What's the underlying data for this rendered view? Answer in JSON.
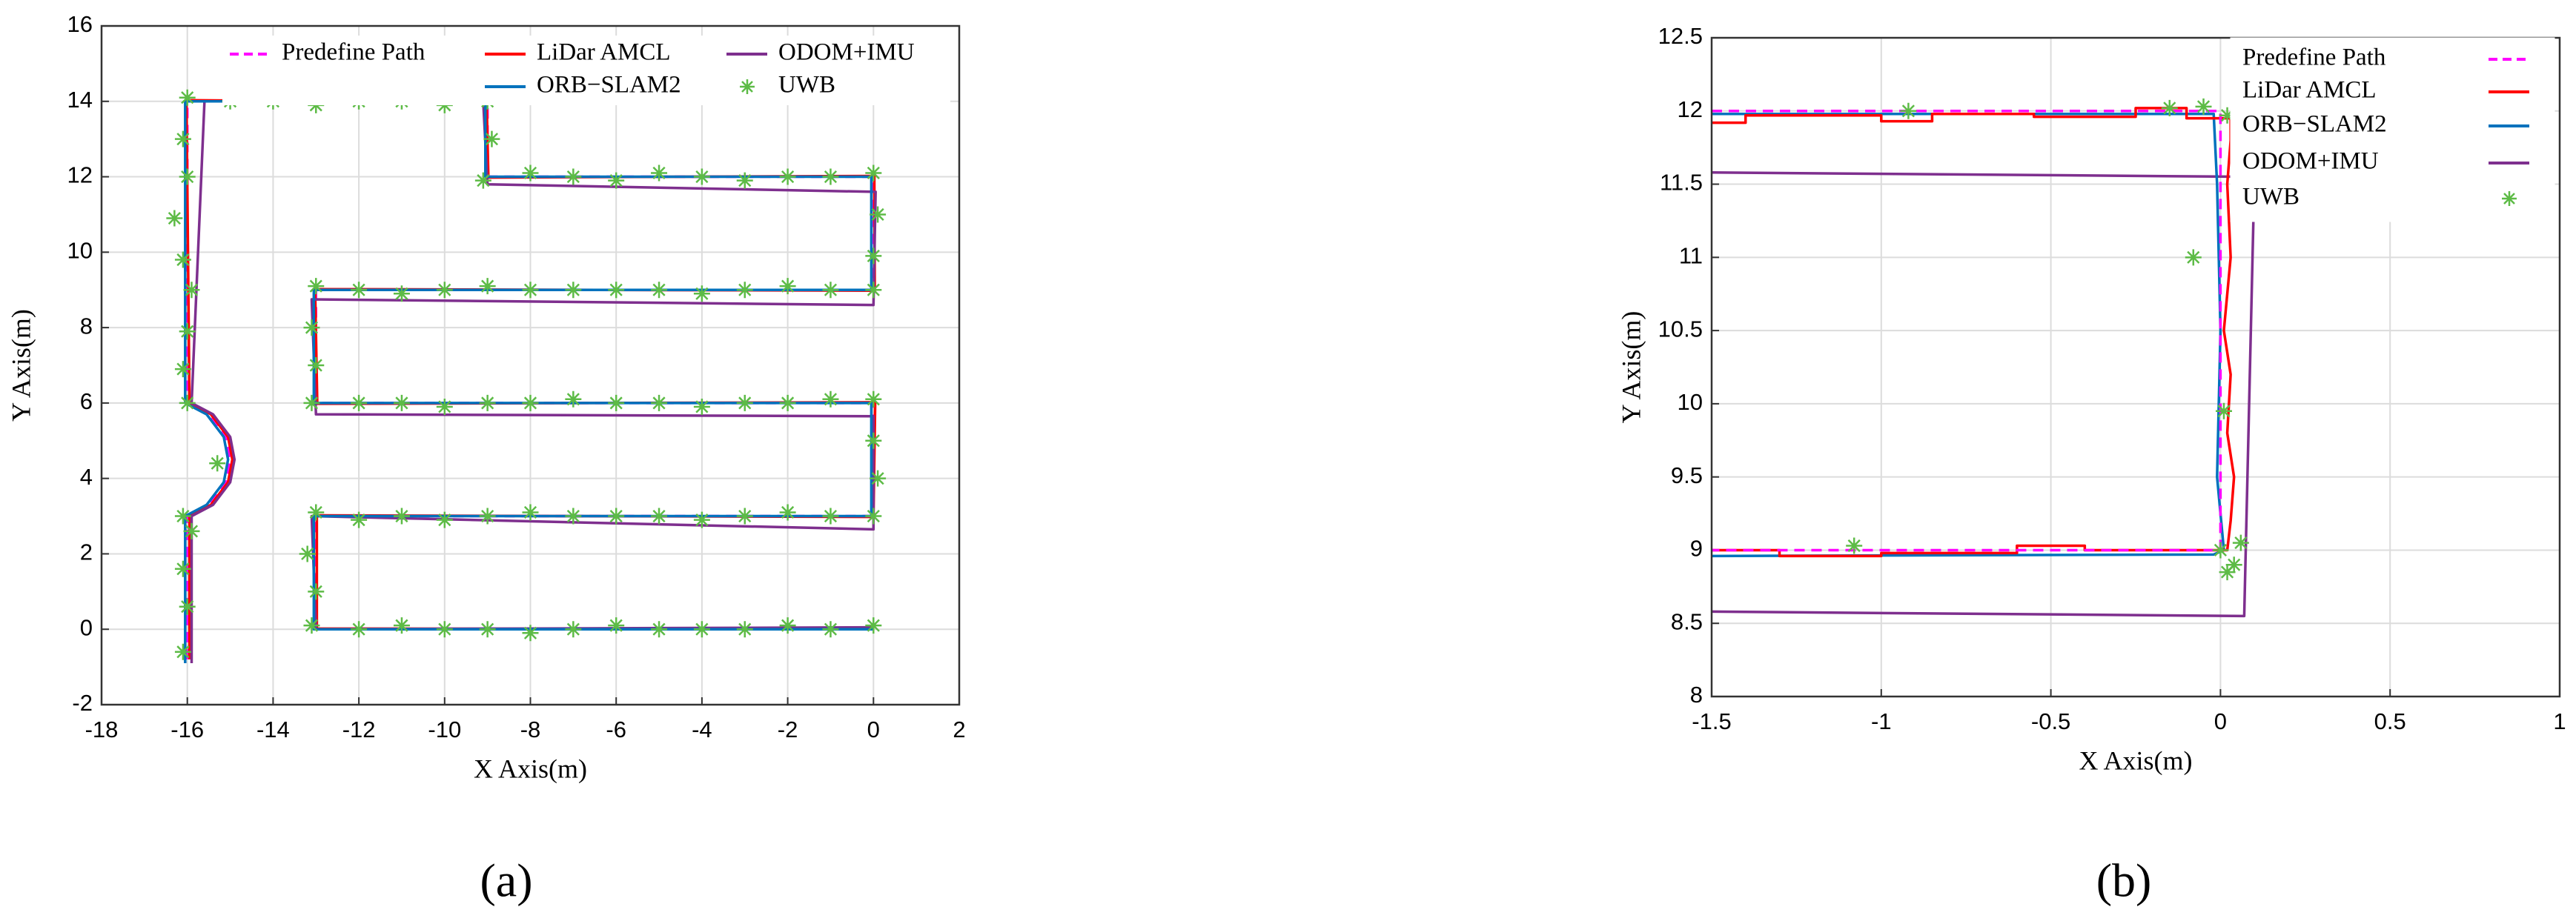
{
  "chart_data": [
    {
      "type": "line",
      "panel_label": "(a)",
      "x_label": "X Axis(m)",
      "y_label": "Y Axis(m)",
      "xlim": [
        -18,
        2
      ],
      "ylim": [
        -2,
        16
      ],
      "xticks": [
        -18,
        -16,
        -14,
        -12,
        -10,
        -8,
        -6,
        -4,
        -2,
        0,
        2
      ],
      "yticks": [
        -2,
        0,
        2,
        4,
        6,
        8,
        10,
        12,
        14,
        16
      ],
      "grid": true,
      "legend": "top-center",
      "series": [
        {
          "name": "Predefine Path",
          "color": "#ff00ff",
          "style": "dashed",
          "x": [
            -16,
            -16,
            -15.5,
            -15.1,
            -15,
            -15.1,
            -15.5,
            -16,
            -16,
            -9,
            -9,
            0,
            0,
            -13,
            -13,
            0,
            0,
            -13,
            -13,
            0
          ],
          "values": [
            -0.8,
            3,
            3.3,
            3.9,
            4.5,
            5.1,
            5.7,
            6,
            14,
            14,
            12,
            12,
            9,
            9,
            6,
            6,
            3,
            3,
            0,
            0
          ]
        },
        {
          "name": "LiDar AMCL",
          "color": "#ff0000",
          "style": "solid",
          "x": [
            -15.95,
            -15.95,
            -15.45,
            -15.05,
            -14.95,
            -15.05,
            -15.45,
            -15.95,
            -16.02,
            -9.02,
            -8.98,
            0.02,
            0.03,
            -13.02,
            -12.97,
            0.04,
            0,
            -12.98,
            -12.98,
            0.02
          ],
          "values": [
            -0.8,
            3,
            3.3,
            3.9,
            4.5,
            5.1,
            5.7,
            6.02,
            14.03,
            13.97,
            11.98,
            12.02,
            8.98,
            9.02,
            5.98,
            6.02,
            2.98,
            3.02,
            0.02,
            0
          ]
        },
        {
          "name": "ODOM+IMU",
          "color": "#7e2f8e",
          "style": "solid",
          "x": [
            -15.9,
            -15.9,
            -15.4,
            -15,
            -14.9,
            -15,
            -15.4,
            -15.9,
            -15.6,
            -9.1,
            -9,
            0.05,
            0,
            -13.1,
            -13,
            0,
            0,
            -13.1,
            -13,
            0
          ],
          "values": [
            -0.9,
            3,
            3.3,
            3.9,
            4.5,
            5.1,
            5.7,
            6,
            14,
            14,
            11.8,
            11.6,
            8.6,
            8.75,
            5.7,
            5.65,
            2.65,
            3,
            0,
            0.05
          ]
        },
        {
          "name": "ORB−SLAM2",
          "color": "#0072bd",
          "style": "solid",
          "x": [
            -16.05,
            -16.05,
            -15.55,
            -15.15,
            -15.05,
            -15.15,
            -15.55,
            -16.05,
            -16.05,
            -9.05,
            -9.05,
            -0.05,
            -0.05,
            -13.05,
            -13.05,
            -0.05,
            -0.05,
            -13.05,
            -13.05,
            0
          ],
          "values": [
            -0.9,
            3,
            3.3,
            3.9,
            4.5,
            5.1,
            5.7,
            6,
            14,
            14,
            12,
            12,
            9,
            9,
            6,
            6,
            3,
            3,
            0,
            0
          ]
        },
        {
          "name": "UWB",
          "color": "#5dbb46",
          "style": "none",
          "marker": "asterisk",
          "x": [
            -16.1,
            -16,
            -16.1,
            -15.9,
            -16.1,
            -16,
            -16.1,
            -16,
            -15.9,
            -16.1,
            -16.3,
            -16,
            -16.1,
            -16,
            -15,
            -14,
            -13,
            -12,
            -11,
            -10,
            -9,
            -8.9,
            -9.1,
            -8,
            -7,
            -6,
            -5,
            -4,
            -3,
            -2,
            -1,
            0,
            0.1,
            0,
            0,
            -1,
            -2,
            -3,
            -4,
            -5,
            -6,
            -7,
            -8,
            -9,
            -10,
            -11,
            -12,
            -13,
            -13.1,
            -13,
            -13.1,
            -12,
            -11,
            -10,
            -9,
            -8,
            -7,
            -6,
            -5,
            -4,
            -3,
            -2,
            -1,
            0,
            0,
            0.1,
            0,
            -1,
            -2,
            -3,
            -4,
            -5,
            -6,
            -7,
            -8,
            -9,
            -10,
            -11,
            -12,
            -13,
            -13.2,
            -13,
            -13.1,
            -12,
            -11,
            -10,
            -9,
            -8,
            -7,
            -6,
            -5,
            -4,
            -3,
            -2,
            -1,
            0,
            -15.3
          ],
          "values": [
            -0.6,
            0.6,
            1.6,
            2.6,
            3,
            6,
            6.9,
            7.9,
            9,
            9.8,
            10.9,
            12,
            13,
            14.1,
            14,
            14,
            13.9,
            14,
            14,
            13.9,
            14,
            13,
            11.9,
            12.1,
            12,
            11.9,
            12.1,
            12,
            11.9,
            12,
            12,
            12.1,
            11,
            9.9,
            9,
            9,
            9.1,
            9,
            8.9,
            9,
            9,
            9,
            9,
            9.1,
            9,
            8.9,
            9,
            9.1,
            8,
            7,
            6,
            6,
            6,
            5.9,
            6,
            6,
            6.1,
            6,
            6,
            5.9,
            6,
            6,
            6.1,
            6.1,
            5,
            4,
            3,
            3,
            3.1,
            3,
            2.9,
            3,
            3,
            3,
            3.1,
            3,
            2.9,
            3,
            2.9,
            3.1,
            2,
            1,
            0.1,
            0,
            0.1,
            0,
            0,
            -0.1,
            0,
            0.1,
            0,
            0,
            0,
            0.1,
            0,
            0.1,
            4.4
          ]
        }
      ]
    },
    {
      "type": "line",
      "panel_label": "(b)",
      "x_label": "X Axis(m)",
      "y_label": "Y Axis(m)",
      "xlim": [
        -1.5,
        1
      ],
      "ylim": [
        8,
        12.5
      ],
      "xticks": [
        -1.5,
        -1,
        -0.5,
        0,
        0.5,
        1
      ],
      "yticks": [
        8,
        8.5,
        9,
        9.5,
        10,
        10.5,
        11,
        11.5,
        12,
        12.5
      ],
      "grid": true,
      "legend": "top-right",
      "series": [
        {
          "name": "ODOM+IMU",
          "color": "#7e2f8e",
          "style": "solid",
          "x": [
            -1.5,
            0.1,
            0.07,
            -1.5
          ],
          "values": [
            11.58,
            11.55,
            8.55,
            8.58
          ]
        },
        {
          "name": "ORB−SLAM2",
          "color": "#0072bd",
          "style": "solid",
          "x": [
            -1.5,
            -0.02,
            -0.01,
            0,
            -0.01,
            0.01,
            -0.02,
            -1.5
          ],
          "values": [
            11.98,
            11.98,
            11.5,
            10.5,
            9.5,
            9,
            8.97,
            8.96
          ]
        },
        {
          "name": "LiDar AMCL",
          "color": "#ff0000",
          "style": "solid",
          "x": [
            -1.5,
            -1.4,
            -1.4,
            -1,
            -1,
            -0.85,
            -0.85,
            -0.55,
            -0.55,
            -0.25,
            -0.25,
            -0.1,
            -0.1,
            0.03,
            0.03,
            0.02,
            0.03,
            0.01,
            0.03,
            0.02,
            0.04,
            0.03,
            0.02,
            -0.4,
            -0.4,
            -0.6,
            -0.6,
            -1,
            -1,
            -1.3,
            -1.3,
            -1.5
          ],
          "values": [
            11.92,
            11.92,
            11.97,
            11.97,
            11.93,
            11.93,
            11.98,
            11.98,
            11.96,
            11.96,
            12.02,
            12.02,
            11.95,
            11.95,
            11.8,
            11.5,
            11,
            10.5,
            10.2,
            9.8,
            9.5,
            9.2,
            9,
            9,
            9.03,
            9.03,
            8.98,
            8.98,
            8.96,
            8.96,
            9,
            9
          ]
        },
        {
          "name": "Predefine Path",
          "color": "#ff00ff",
          "style": "dashed",
          "x": [
            -1.5,
            0,
            0,
            -1.5
          ],
          "values": [
            12,
            12,
            9,
            9
          ]
        },
        {
          "name": "UWB",
          "color": "#5dbb46",
          "style": "none",
          "marker": "asterisk",
          "x": [
            -0.92,
            -0.15,
            -0.05,
            0.02,
            -0.08,
            0.01,
            0.06,
            0.04,
            0.02,
            -1.08,
            0
          ],
          "values": [
            12,
            12.02,
            12.03,
            11.97,
            11,
            9.95,
            9.05,
            8.9,
            8.85,
            9.03,
            9
          ]
        }
      ]
    }
  ]
}
